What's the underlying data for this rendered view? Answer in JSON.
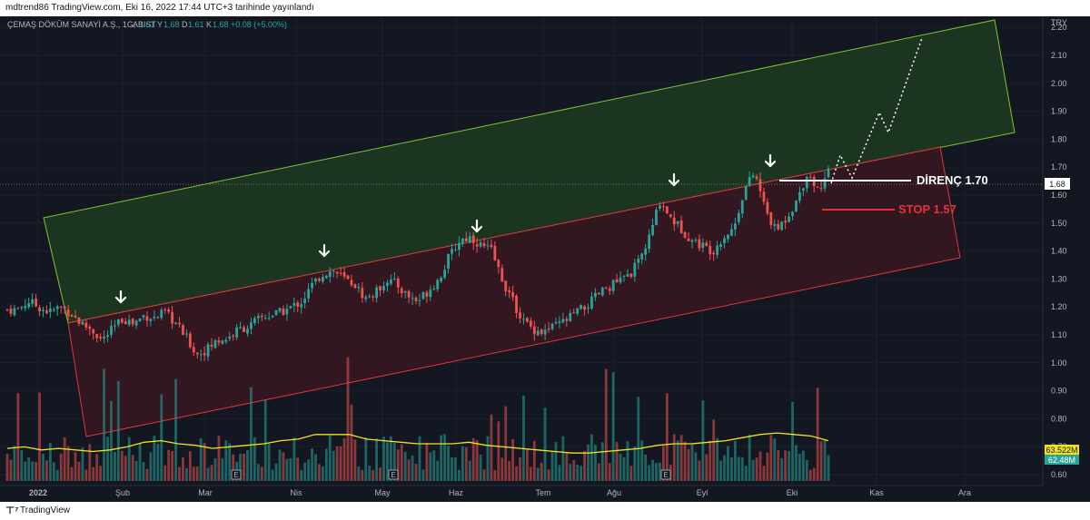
{
  "header": {
    "publisher_line": "mdtrend86 TradingView.com, Eki 16, 2022 17:44 UTC+3 tarihinde yayınlandı"
  },
  "symbol_line": {
    "name": "ÇEMAŞ DÖKÜM SANAYİ A.Ş., 1G, BIST",
    "ohlc": [
      {
        "label": "A",
        "value": "1.61"
      },
      {
        "label": "Y",
        "value": "1.68"
      },
      {
        "label": "D",
        "value": "1.61"
      },
      {
        "label": "K",
        "value": "1.68"
      }
    ],
    "change": "+0.08 (+5.00%)"
  },
  "footer": {
    "logo": "⊤⁷",
    "brand": "TradingView"
  },
  "annotations": {
    "resistance": "DİRENÇ 1.70",
    "stop": "STOP 1.57"
  },
  "colors": {
    "up": "#26a69a",
    "down": "#ef5350",
    "bg": "#131722",
    "ma": "#f3e21b",
    "green_zone": "#1e3a26",
    "red_zone": "#3a1b23"
  },
  "chart_data": {
    "type": "candlestick",
    "currency": "TRY",
    "last_price": "1.68",
    "volume_ma_label": "63.522M",
    "volume_label": "62.48M",
    "ylim": [
      0.6,
      2.22
    ],
    "y_ticks": [
      "2.20",
      "2.10",
      "2.00",
      "1.90",
      "1.80",
      "1.70",
      "1.60",
      "1.50",
      "1.40",
      "1.30",
      "1.20",
      "1.10",
      "1.00",
      "0.90",
      "0.80",
      "0.70",
      "0.60"
    ],
    "x_ticks": [
      "2022",
      "Şub",
      "Mar",
      "Nis",
      "May",
      "Haz",
      "Tem",
      "Ağu",
      "Eyl",
      "Eki",
      "Kas",
      "Ara"
    ],
    "earnings_markers": 4,
    "close_path": [
      1.19,
      1.19,
      1.22,
      1.2,
      1.18,
      1.2,
      1.18,
      1.14,
      1.12,
      1.08,
      1.12,
      1.16,
      1.14,
      1.17,
      1.16,
      1.18,
      1.14,
      1.09,
      1.03,
      1.05,
      1.08,
      1.09,
      1.12,
      1.13,
      1.16,
      1.17,
      1.18,
      1.2,
      1.22,
      1.28,
      1.32,
      1.33,
      1.3,
      1.28,
      1.23,
      1.25,
      1.3,
      1.28,
      1.24,
      1.22,
      1.26,
      1.3,
      1.38,
      1.44,
      1.45,
      1.42,
      1.4,
      1.3,
      1.22,
      1.15,
      1.12,
      1.11,
      1.13,
      1.15,
      1.18,
      1.2,
      1.24,
      1.27,
      1.29,
      1.31,
      1.36,
      1.45,
      1.58,
      1.52,
      1.48,
      1.44,
      1.42,
      1.4,
      1.45,
      1.48,
      1.62,
      1.68,
      1.55,
      1.47,
      1.52,
      1.58,
      1.68,
      1.62,
      1.68
    ],
    "volume_ma": [
      0.67,
      0.68,
      0.66,
      0.67,
      0.66,
      0.65,
      0.66,
      0.68,
      0.71,
      0.72,
      0.7,
      0.69,
      0.67,
      0.68,
      0.69,
      0.7,
      0.72,
      0.73,
      0.76,
      0.76,
      0.76,
      0.73,
      0.72,
      0.71,
      0.7,
      0.7,
      0.7,
      0.71,
      0.69,
      0.68,
      0.67,
      0.66,
      0.65,
      0.64,
      0.64,
      0.65,
      0.66,
      0.67,
      0.69,
      0.7,
      0.7,
      0.71,
      0.72,
      0.74,
      0.76,
      0.77,
      0.76,
      0.75,
      0.72
    ]
  }
}
